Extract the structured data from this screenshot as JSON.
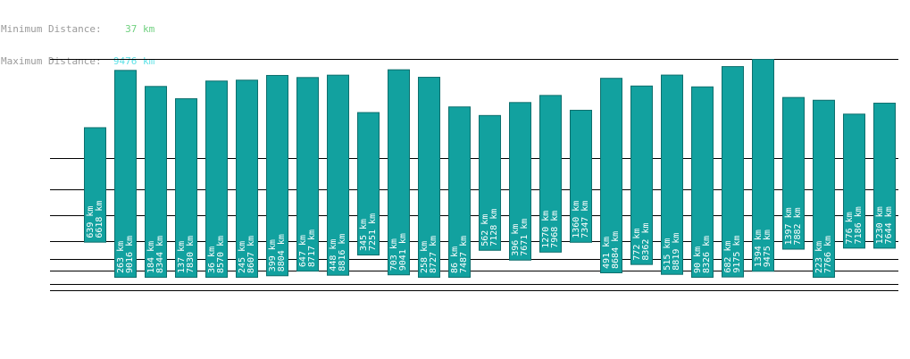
{
  "summary": {
    "min_label": "Minimum Distance:",
    "min_value": "37 km",
    "max_label": "Maximum Distance:",
    "max_value": "9476 km"
  },
  "colors": {
    "bar": "#12a19f",
    "bar_border": "#0d6f6d",
    "label": "#ffffff",
    "grid": "#000000",
    "min_value": "#6fd07f",
    "max_value": "#5de0e6"
  },
  "chart_data": {
    "type": "bar",
    "unit": "km",
    "ylim": [
      0,
      9476
    ],
    "grid": true,
    "series": [
      {
        "values": [
          {
            "min": 639,
            "max": 6618
          },
          {
            "min": 263,
            "max": 9016
          },
          {
            "min": 184,
            "max": 8344
          },
          {
            "min": 137,
            "max": 7830
          },
          {
            "min": 36,
            "max": 8570
          },
          {
            "min": 245,
            "max": 8607
          },
          {
            "min": 399,
            "max": 8804
          },
          {
            "min": 647,
            "max": 8717
          },
          {
            "min": 448,
            "max": 8816
          },
          {
            "min": 345,
            "max": 7251
          },
          {
            "min": 703,
            "max": 9041
          },
          {
            "min": 258,
            "max": 8727
          },
          {
            "min": 86,
            "max": 7487
          },
          {
            "min": 562,
            "max": 7128
          },
          {
            "min": 396,
            "max": 7671
          },
          {
            "min": 1270,
            "max": 7968
          },
          {
            "min": 1360,
            "max": 7347
          },
          {
            "min": 491,
            "max": 8684
          },
          {
            "min": 772,
            "max": 8362
          },
          {
            "min": 515,
            "max": 8819
          },
          {
            "min": 90,
            "max": 8326
          },
          {
            "min": 682,
            "max": 9175
          },
          {
            "min": 1394,
            "max": 9475
          },
          {
            "min": 1397,
            "max": 7882
          },
          {
            "min": 223,
            "max": 7766
          },
          {
            "min": 776,
            "max": 7186
          },
          {
            "min": 1230,
            "max": 7644
          }
        ]
      }
    ]
  }
}
